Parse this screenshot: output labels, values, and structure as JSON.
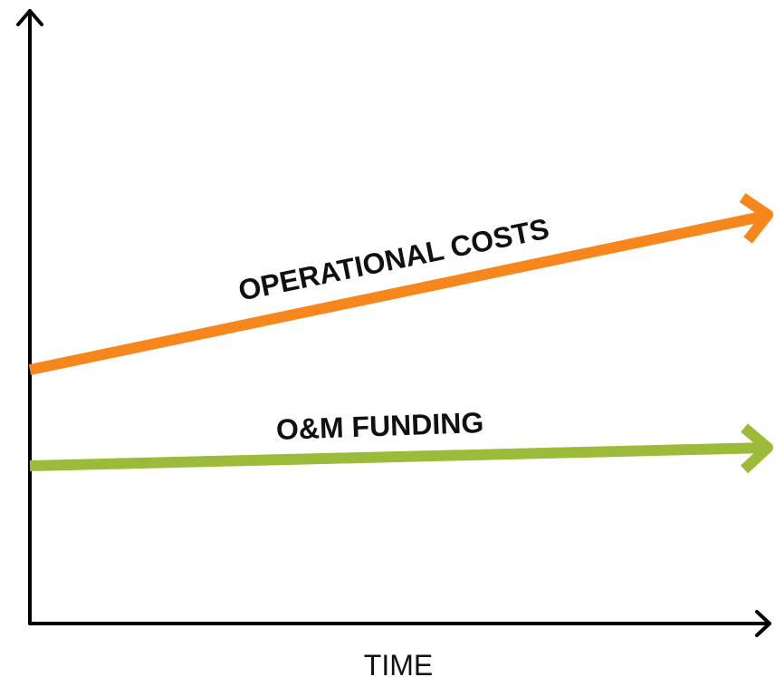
{
  "axes": {
    "x_label": "TIME"
  },
  "lines": [
    {
      "label": "OPERATIONAL COSTS",
      "color": "#f7861d"
    },
    {
      "label": "O&M FUNDING",
      "color": "#9dbb3a"
    }
  ]
}
